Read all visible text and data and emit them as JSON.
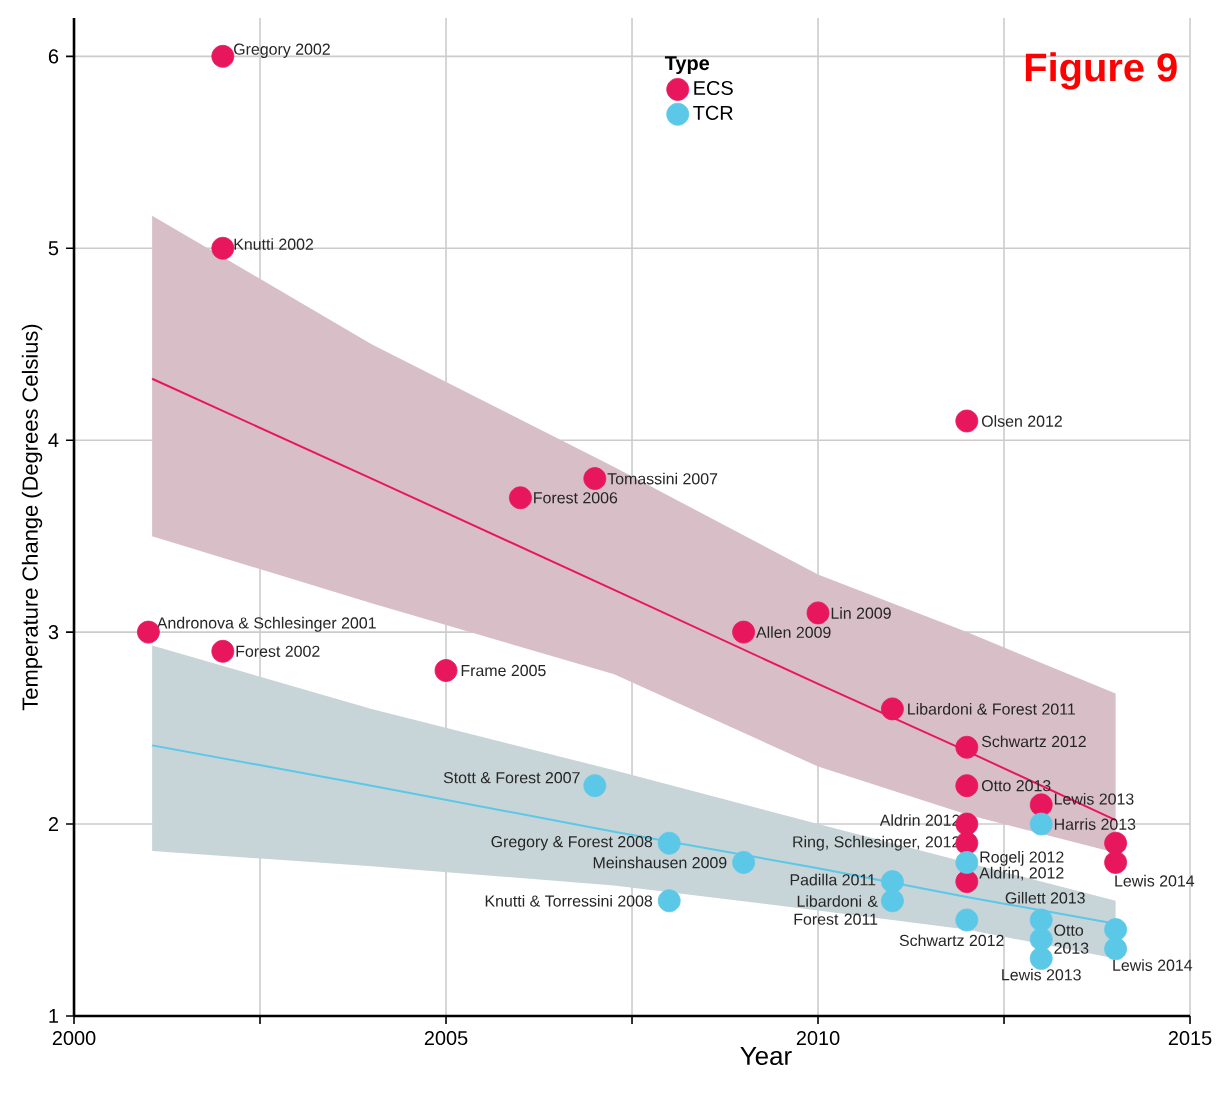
{
  "chart_data": {
    "type": "scatter",
    "title": "Figure 9",
    "xlabel": "Year",
    "ylabel": "Temperature Change (Degrees Celsius)",
    "legend_title": "Type",
    "xlim": [
      2000,
      2015
    ],
    "ylim": [
      1,
      6.2
    ],
    "xticks": [
      2000,
      {
        "value": 2002.5,
        "label": null
      },
      2005,
      {
        "value": 2007.5,
        "label": null
      },
      2010,
      {
        "value": 2012.5,
        "label": null
      },
      2015
    ],
    "yticks": [
      1,
      2,
      3,
      4,
      5,
      6
    ],
    "grid": true,
    "legend": "top",
    "series": [
      {
        "name": "ECS",
        "marker": "circle",
        "color": "#e8175d",
        "x": [
          2001,
          2002,
          2002,
          2002,
          2005,
          2006,
          2007,
          2009,
          2010,
          2011,
          2012,
          2012,
          2012,
          2012,
          2012,
          2012,
          2013,
          2014,
          2014
        ],
        "values": [
          3.0,
          6.0,
          5.0,
          2.9,
          2.8,
          3.7,
          3.8,
          3.0,
          3.1,
          2.6,
          4.1,
          2.4,
          2.2,
          2.0,
          1.9,
          1.7,
          2.1,
          1.9,
          1.8
        ]
      },
      {
        "name": "TCR",
        "marker": "circle",
        "color": "#5bc8e8",
        "x": [
          2007,
          2008,
          2008,
          2009,
          2011,
          2011,
          2012,
          2012,
          2013,
          2013,
          2013,
          2013,
          2014,
          2014
        ],
        "values": [
          2.2,
          1.9,
          1.6,
          1.8,
          1.7,
          1.6,
          1.8,
          1.5,
          2.0,
          1.5,
          1.4,
          1.3,
          1.45,
          1.35
        ]
      },
      {
        "type": "line",
        "marker": "none",
        "color": "#e8175d",
        "x": [
          2001.05,
          2004,
          2007.26,
          2010,
          2012,
          2014
        ],
        "values": [
          4.32,
          3.8,
          3.22,
          2.73,
          2.38,
          2.02
        ],
        "lower": [
          3.5,
          3.15,
          2.78,
          2.3,
          2.05,
          1.85
        ],
        "upper": [
          5.17,
          4.5,
          3.86,
          3.3,
          3.0,
          2.68
        ]
      },
      {
        "type": "line",
        "marker": "none",
        "color": "#5bc8e8",
        "x": [
          2001.05,
          2004,
          2007.26,
          2010,
          2012,
          2014
        ],
        "values": [
          2.41,
          2.2,
          1.96,
          1.77,
          1.62,
          1.48
        ],
        "lower": [
          1.86,
          1.78,
          1.68,
          1.55,
          1.45,
          1.3
        ],
        "upper": [
          2.93,
          2.6,
          2.28,
          2.0,
          1.8,
          1.6
        ]
      }
    ],
    "annotations": [
      {
        "text": "Gregory 2002",
        "x": 2002,
        "y": 6.0
      },
      {
        "text": "Knutti 2002",
        "x": 2002,
        "y": 5.0
      },
      {
        "text": "Andronova & Schlesinger 2001",
        "x": 2001,
        "y": 3.0
      },
      {
        "text": "Forest 2002",
        "x": 2002,
        "y": 2.9
      },
      {
        "text": "Frame 2005",
        "x": 2005,
        "y": 2.8
      },
      {
        "text": "Forest 2006",
        "x": 2006,
        "y": 3.7
      },
      {
        "text": "Tomassini 2007",
        "x": 2007,
        "y": 3.8
      },
      {
        "text": "Allen 2009",
        "x": 2009,
        "y": 3.0
      },
      {
        "text": "Lin 2009",
        "x": 2010,
        "y": 3.1
      },
      {
        "text": "Libardoni & Forest 2011",
        "x": 2011,
        "y": 2.6
      },
      {
        "text": "Olsen 2012",
        "x": 2012,
        "y": 4.1
      },
      {
        "text": "Schwartz 2012",
        "x": 2012,
        "y": 2.4
      },
      {
        "text": "Otto 2013",
        "x": 2012,
        "y": 2.2
      },
      {
        "text": "Aldrin 2012",
        "x": 2012,
        "y": 2.0
      },
      {
        "text": "Ring, Schlesinger, 2012",
        "x": 2012,
        "y": 1.9
      },
      {
        "text": "Aldrin, 2012",
        "x": 2012,
        "y": 1.7
      },
      {
        "text": "Lewis 2013",
        "x": 2013,
        "y": 2.1
      },
      {
        "text": "Lewis 2014",
        "x": 2014,
        "y": 1.8
      },
      {
        "text": "Stott & Forest 2007",
        "x": 2007,
        "y": 2.2
      },
      {
        "text": "Gregory & Forest 2008",
        "x": 2008,
        "y": 1.9
      },
      {
        "text": "Meinshausen 2009",
        "x": 2009,
        "y": 1.8
      },
      {
        "text": "Knutti & Torressini 2008",
        "x": 2008,
        "y": 1.6
      },
      {
        "text": "Padilla 2011",
        "x": 2011,
        "y": 1.7
      },
      {
        "text": "Libardoni & Forest 2011",
        "x": 2011,
        "y": 1.6
      },
      {
        "text": "Rogelj 2012",
        "x": 2012,
        "y": 1.8
      },
      {
        "text": "Schwartz 2012",
        "x": 2012,
        "y": 1.5
      },
      {
        "text": "Harris 2013",
        "x": 2013,
        "y": 2.0
      },
      {
        "text": "Gillett 2013",
        "x": 2013,
        "y": 1.5
      },
      {
        "text": "Otto 2013",
        "x": 2013,
        "y": 1.4
      },
      {
        "text": "Lewis 2013",
        "x": 2013,
        "y": 1.3
      },
      {
        "text": "Lewis 2014",
        "x": 2014,
        "y": 1.35
      }
    ]
  }
}
